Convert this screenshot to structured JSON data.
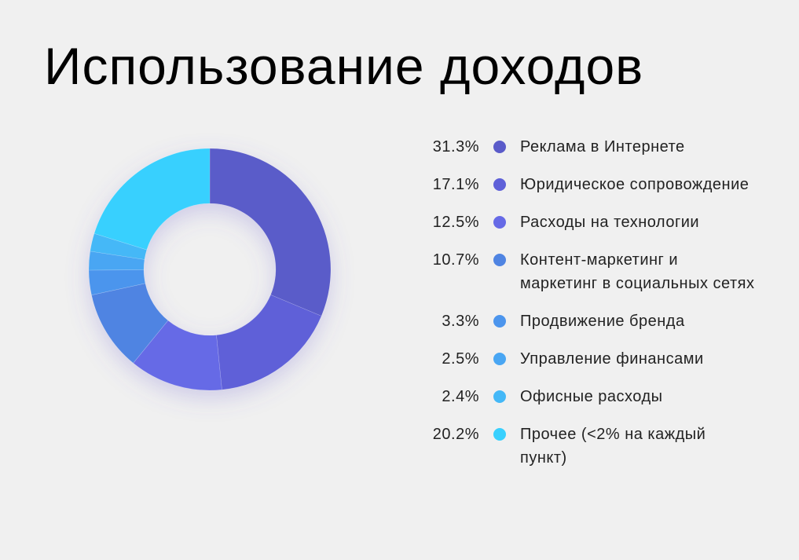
{
  "chart_data": {
    "type": "pie",
    "variant": "donut",
    "title": "Использование доходов",
    "legend_position": "right",
    "slices": [
      {
        "label": "Реклама в Интернете",
        "value": 31.3,
        "display": "31.3%",
        "color": "#5a5bc9"
      },
      {
        "label": "Юридическое сопровождение",
        "value": 17.1,
        "display": "17.1%",
        "color": "#5e60d8"
      },
      {
        "label": "Расходы на технологии",
        "value": 12.5,
        "display": "12.5%",
        "color": "#666ae6"
      },
      {
        "label": "Контент-маркетинг и маркетинг в социальных сетях",
        "value": 10.7,
        "display": "10.7%",
        "color": "#4f84e2"
      },
      {
        "label": "Продвижение бренда",
        "value": 3.3,
        "display": "3.3%",
        "color": "#4c95ed"
      },
      {
        "label": "Управление финансами",
        "value": 2.5,
        "display": "2.5%",
        "color": "#49a6f3"
      },
      {
        "label": "Офисные расходы",
        "value": 2.4,
        "display": "2.4%",
        "color": "#44b8f7"
      },
      {
        "label": "Прочее (<2% на каждый пункт)",
        "value": 20.2,
        "display": "20.2%",
        "color": "#38d0fe"
      }
    ]
  }
}
